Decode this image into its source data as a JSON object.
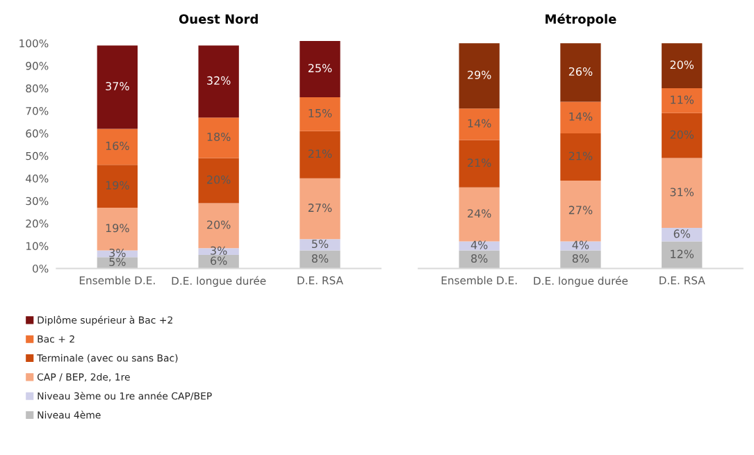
{
  "chart_data": [
    {
      "type": "bar",
      "title": "Ouest Nord",
      "stacked": true,
      "legend": "bottom",
      "categories": [
        "Ensemble D.E.",
        "D.E. longue durée",
        "D.E. RSA"
      ],
      "ylim": [
        0,
        101
      ],
      "yticks": [
        {
          "value": 0,
          "label": "0%"
        },
        {
          "value": 10,
          "label": "10%"
        },
        {
          "value": 20,
          "label": "20%"
        },
        {
          "value": 30,
          "label": "30%"
        },
        {
          "value": 40,
          "label": "40%"
        },
        {
          "value": 50,
          "label": "50%"
        },
        {
          "value": 60,
          "label": "60%"
        },
        {
          "value": 70,
          "label": "70%"
        },
        {
          "value": 80,
          "label": "80%"
        },
        {
          "value": 90,
          "label": "90%"
        },
        {
          "value": 100,
          "label": "100%"
        }
      ],
      "series": [
        {
          "name": "Niveau 4ème",
          "color": "#bfbfbf",
          "values": [
            5,
            6,
            8
          ],
          "value_labels": [
            "5%",
            "6%",
            "8%"
          ]
        },
        {
          "name": "Niveau 3ème ou 1re année CAP/BEP",
          "color": "#d0d0ea",
          "values": [
            3,
            3,
            5
          ],
          "value_labels": [
            "3%",
            "3%",
            "5%"
          ]
        },
        {
          "name": "CAP / BEP, 2de, 1re",
          "color": "#f6a882",
          "values": [
            19,
            20,
            27
          ],
          "value_labels": [
            "19%",
            "20%",
            "27%"
          ]
        },
        {
          "name": "Terminale (avec ou sans Bac)",
          "color": "#cb4b0e",
          "values": [
            19,
            20,
            21
          ],
          "value_labels": [
            "19%",
            "20%",
            "21%"
          ]
        },
        {
          "name": "Bac + 2",
          "color": "#ef7132",
          "values": [
            16,
            18,
            15
          ],
          "value_labels": [
            "16%",
            "18%",
            "15%"
          ]
        },
        {
          "name": "Diplôme supérieur à Bac +2",
          "color": "#7b1111",
          "values": [
            37,
            32,
            25
          ],
          "value_labels": [
            "37%",
            "32%",
            "25%"
          ]
        }
      ]
    },
    {
      "type": "bar",
      "title": "Métropole",
      "stacked": true,
      "tick_labels": "x",
      "categories": [
        "Ensemble D.E.",
        "D.E. longue durée",
        "D.E. RSA"
      ],
      "ylim": [
        0,
        101
      ],
      "series": [
        {
          "color": "#bfbfbf",
          "values": [
            8,
            8,
            12
          ],
          "value_labels": [
            "8%",
            "8%",
            "12%"
          ]
        },
        {
          "color": "#d0d0ea",
          "values": [
            4,
            4,
            6
          ],
          "value_labels": [
            "4%",
            "4%",
            "6%"
          ]
        },
        {
          "color": "#f6a882",
          "values": [
            24,
            27,
            31
          ],
          "value_labels": [
            "24%",
            "27%",
            "31%"
          ]
        },
        {
          "color": "#cb4b0e",
          "values": [
            21,
            21,
            20
          ],
          "value_labels": [
            "21%",
            "21%",
            "20%"
          ]
        },
        {
          "color": "#ef7132",
          "values": [
            14,
            14,
            11
          ],
          "value_labels": [
            "14%",
            "14%",
            "11%"
          ]
        },
        {
          "color": "#8a300a",
          "values": [
            29,
            26,
            20
          ],
          "value_labels": [
            "29%",
            "26%",
            "20%"
          ]
        }
      ]
    }
  ]
}
